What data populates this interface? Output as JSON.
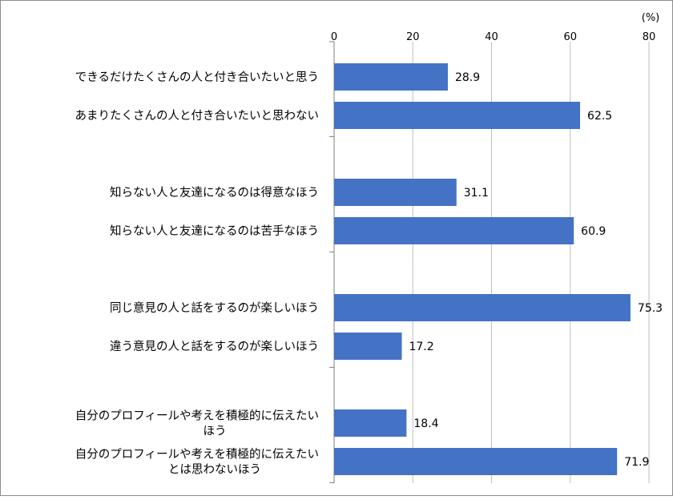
{
  "chart_data": {
    "type": "bar",
    "orientation": "horizontal",
    "unit_label": "(%)",
    "xlim": [
      0,
      80
    ],
    "ticks": [
      0,
      20,
      40,
      60,
      80
    ],
    "grid": true,
    "bar_color": "#4472C4",
    "categories": [
      [
        "できるだけたくさんの人と付き合いたいと思う"
      ],
      [
        "あまりたくさんの人と付き合いたいと思わない"
      ],
      [
        "知らない人と友達になるのは得意なほう"
      ],
      [
        "知らない人と友達になるのは苦手なほう"
      ],
      [
        "同じ意見の人と話をするのが楽しいほう"
      ],
      [
        "違う意見の人と話をするのが楽しいほう"
      ],
      [
        "自分のプロフィールや考えを積極的に伝えたい",
        "ほう"
      ],
      [
        "自分のプロフィールや考えを積極的に伝えたい",
        "とは思わないほう"
      ]
    ],
    "groups": [
      [
        0,
        1
      ],
      [
        2,
        3
      ],
      [
        4,
        5
      ],
      [
        6,
        7
      ]
    ],
    "values": [
      28.9,
      62.5,
      31.1,
      60.9,
      75.3,
      17.2,
      18.4,
      71.9
    ]
  }
}
